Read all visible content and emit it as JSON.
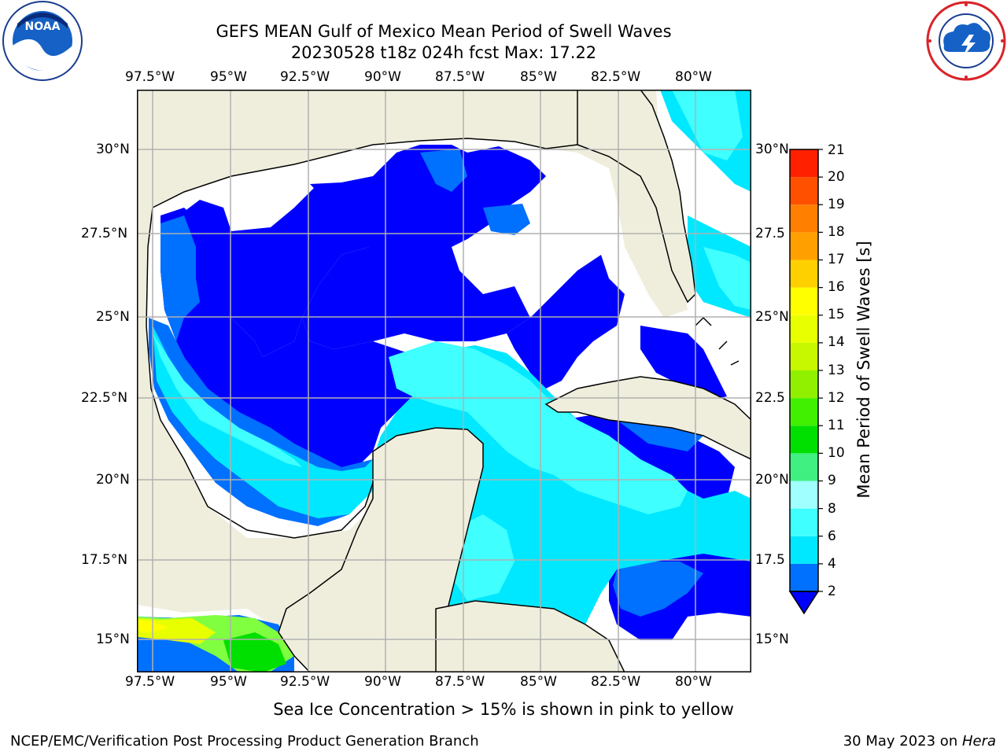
{
  "header": {
    "title": "GEFS MEAN Gulf of Mexico Mean Period of Swell Waves",
    "subtitle": "20230528 t18z 024h fcst   Max: 17.22"
  },
  "logos": {
    "left": "noaa-logo",
    "left_text": "NOAA",
    "right": "nws-logo"
  },
  "map": {
    "lon_labels": [
      "97.5°W",
      "95°W",
      "92.5°W",
      "90°W",
      "87.5°W",
      "85°W",
      "82.5°W",
      "80°W"
    ],
    "lat_labels_left": [
      "30°N",
      "27.5°N",
      "25°N",
      "22.5°N",
      "20°N",
      "17.5°N",
      "15°N"
    ],
    "lat_labels_right": [
      "30°N",
      "27.5",
      "25°N",
      "22.5",
      "20°N",
      "17.5",
      "15°N"
    ],
    "lon_range": [
      -98,
      -78.2
    ],
    "lat_range": [
      14,
      31.6
    ],
    "colors": {
      "land": "#efeedd",
      "ocean_nodata": "#ffffff",
      "grid": "#b0b0b0",
      "coast": "#000000"
    }
  },
  "colorbar": {
    "label": "Mean Period of Swell Waves [s]",
    "ticks": [
      "2",
      "4",
      "6",
      "8",
      "9",
      "10",
      "11",
      "12",
      "13",
      "14",
      "15",
      "16",
      "17",
      "18",
      "19",
      "20",
      "21"
    ],
    "colors": [
      "#0070ff",
      "#00e8ff",
      "#40ffff",
      "#a0ffff",
      "#40f080",
      "#00e000",
      "#40f000",
      "#90f000",
      "#c8f800",
      "#e8ff00",
      "#ffff00",
      "#ffd000",
      "#ffa000",
      "#ff8000",
      "#ff5000",
      "#ff2000",
      "#ff0000"
    ]
  },
  "footnote": "Sea Ice Concentration > 15% is shown in pink to yellow",
  "footer": {
    "left": "NCEP/EMC/Verification Post Processing Product Generation Branch",
    "right_date": "30 May 2023 on ",
    "right_machine": "Hera"
  }
}
